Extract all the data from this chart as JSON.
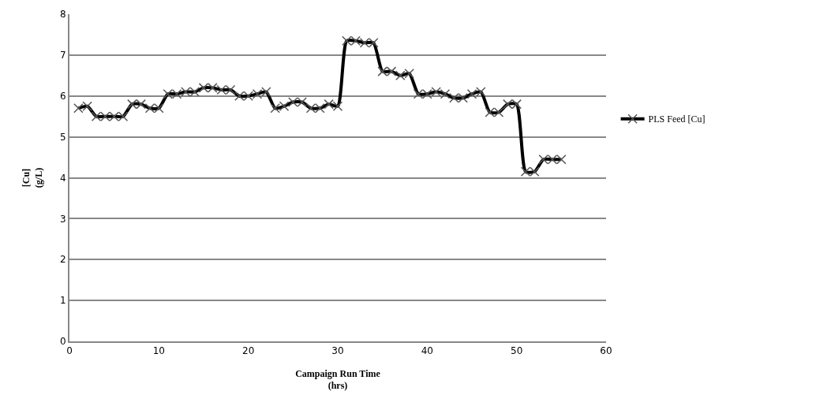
{
  "chart_data": {
    "type": "line",
    "xlabel": "Campaign Run Time\n(hrs)",
    "ylabel": "[Cu]\n(g/L)",
    "xlim": [
      0,
      60
    ],
    "xticks": [
      0,
      10,
      20,
      30,
      40,
      50,
      60
    ],
    "ylim": [
      0,
      8
    ],
    "yticks": [
      0,
      1,
      2,
      3,
      4,
      5,
      6,
      7,
      8
    ],
    "grid": "y",
    "legend": "right",
    "marker": "cross",
    "line_style": "solid",
    "x": [
      1,
      2,
      3,
      4,
      5,
      6,
      7,
      8,
      9,
      10,
      11,
      12,
      13,
      14,
      15,
      16,
      17,
      18,
      19,
      20,
      21,
      22,
      23,
      24,
      25,
      26,
      27,
      28,
      29,
      30,
      31,
      32,
      33,
      34,
      35,
      36,
      37,
      38,
      39,
      40,
      41,
      42,
      43,
      44,
      45,
      46,
      47,
      48,
      49,
      50,
      51,
      52,
      53,
      54,
      55
    ],
    "series": [
      {
        "name": "PLS Feed [Cu]",
        "color": "#000000",
        "values": [
          5.7,
          5.75,
          5.5,
          5.5,
          5.5,
          5.5,
          5.8,
          5.8,
          5.7,
          5.7,
          6.05,
          6.05,
          6.1,
          6.1,
          6.2,
          6.2,
          6.15,
          6.15,
          6.0,
          6.0,
          6.05,
          6.1,
          5.7,
          5.75,
          5.85,
          5.85,
          5.7,
          5.7,
          5.8,
          5.75,
          7.35,
          7.35,
          7.3,
          7.3,
          6.6,
          6.6,
          6.5,
          6.55,
          6.05,
          6.05,
          6.1,
          6.05,
          5.95,
          5.95,
          6.05,
          6.1,
          5.6,
          5.6,
          5.8,
          5.8,
          4.15,
          4.15,
          4.45,
          4.45,
          4.45
        ]
      }
    ]
  }
}
